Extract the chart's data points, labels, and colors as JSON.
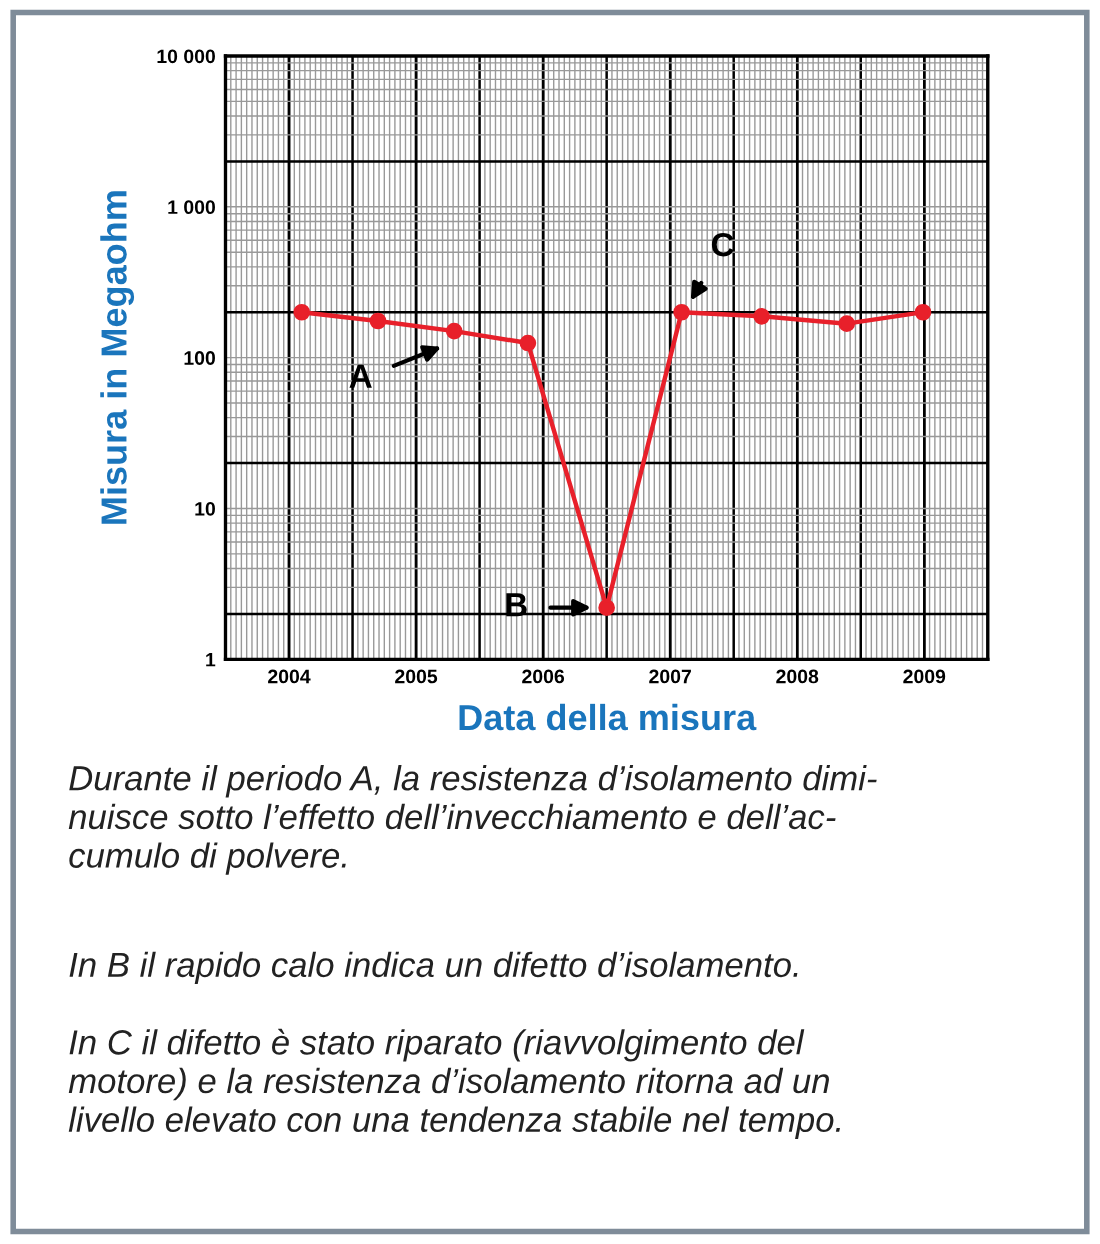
{
  "chart_data": {
    "type": "line",
    "xlabel": "Data della misura",
    "ylabel": "Misura in Megaohm",
    "x": [
      2004.6,
      2005.2,
      2005.8,
      2006.38,
      2007.0,
      2007.59,
      2008.22,
      2008.89,
      2009.49
    ],
    "series": [
      {
        "color": "#e8202a",
        "values": [
          200,
          175,
          150,
          125,
          2.2,
          200,
          188,
          168,
          200
        ]
      }
    ],
    "log": "y",
    "marker": "circle",
    "line_style": "solid",
    "grid": true,
    "xlim": [
      2004,
      2010
    ],
    "xticks": [
      {
        "value": 2004.5,
        "label": "2004"
      },
      {
        "value": 2005.5,
        "label": "2005"
      },
      {
        "value": 2006.5,
        "label": "2006"
      },
      {
        "value": 2007.5,
        "label": "2007"
      },
      {
        "value": 2008.5,
        "label": "2008"
      },
      {
        "value": 2009.5,
        "label": "2009"
      }
    ],
    "ylim": [
      1,
      10000
    ],
    "yticks": [
      1,
      10,
      100,
      {
        "value": 1000,
        "label": "1 000"
      },
      {
        "value": 10000,
        "label": "10 000"
      }
    ],
    "annotations": [
      {
        "text": "A",
        "x": 2005.72,
        "y": 120
      },
      {
        "text": "B",
        "x": 2006.9,
        "y": 2.2
      },
      {
        "text": "C",
        "x": 2007.65,
        "y": 230
      },
      "Durante il periodo A, la resistenza d’isolamento dimi-\nnuisce sotto l’effetto dell’invecchiamento e dell’ac-\ncumulo di polvere.",
      "In B il rapido calo indica un difetto d’isolamento.",
      "In C il difetto è stato riparato (riavvolgimento del\nmotore) e la resistenza d’isolamento ritorna ad un\nlivello elevato con una tendenza stabile nel tempo."
    ]
  }
}
